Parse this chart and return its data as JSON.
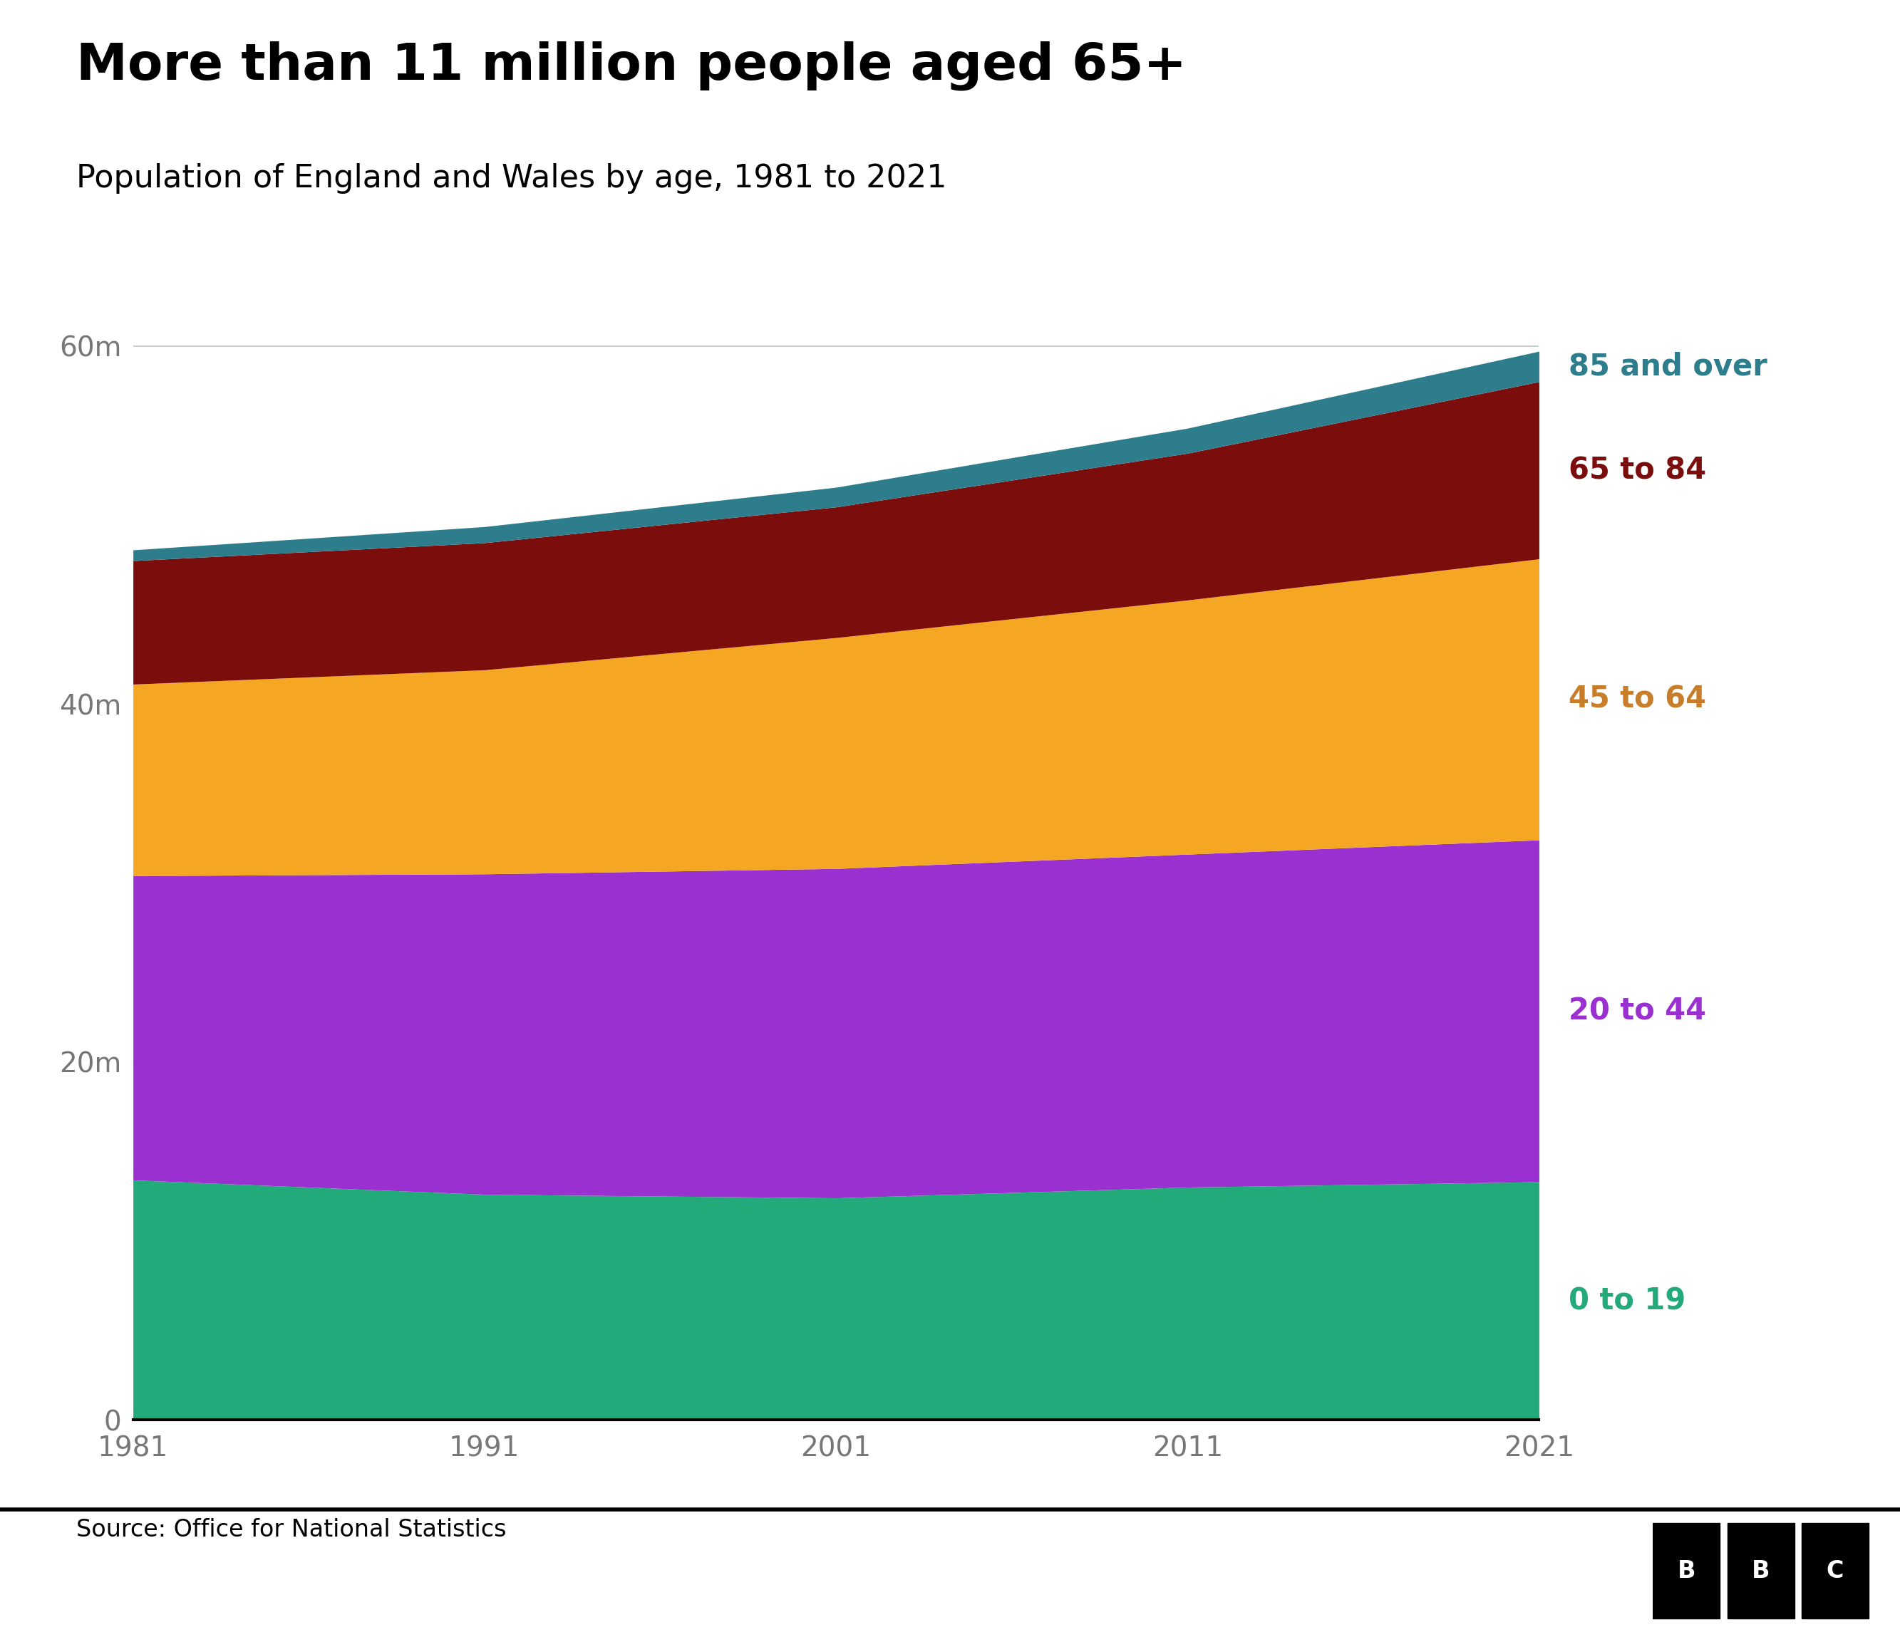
{
  "title": "More than 11 million people aged 65+",
  "subtitle": "Population of England and Wales by age, 1981 to 2021",
  "source": "Source: Office for National Statistics",
  "years": [
    1981,
    1991,
    2001,
    2011,
    2021
  ],
  "age_groups": [
    {
      "label": "0 to 19",
      "color": "#22aa7a",
      "label_color": "#22aa7a",
      "values": [
        13400000,
        12600000,
        12400000,
        13000000,
        13300000
      ]
    },
    {
      "label": "20 to 44",
      "color": "#9b30d0",
      "label_color": "#9b30d0",
      "values": [
        17000000,
        17900000,
        18400000,
        18600000,
        19100000
      ]
    },
    {
      "label": "45 to 64",
      "color": "#f5a623",
      "label_color": "#c87d2a",
      "values": [
        10700000,
        11400000,
        12900000,
        14200000,
        15700000
      ]
    },
    {
      "label": "65 to 84",
      "color": "#7b0d0d",
      "label_color": "#7b0d0d",
      "values": [
        6900000,
        7100000,
        7300000,
        8200000,
        9900000
      ]
    },
    {
      "label": "85 and over",
      "color": "#2e7d8c",
      "label_color": "#2e7d8c",
      "values": [
        600000,
        900000,
        1100000,
        1400000,
        1700000
      ]
    }
  ],
  "ylim": [
    0,
    62000000
  ],
  "yticks": [
    0,
    20000000,
    40000000,
    60000000
  ],
  "ytick_labels": [
    "0",
    "20m",
    "40m",
    "60m"
  ],
  "xticks": [
    1981,
    1991,
    2001,
    2011,
    2021
  ],
  "background_color": "#ffffff",
  "grid_color": "#cccccc",
  "title_fontsize": 52,
  "subtitle_fontsize": 32,
  "label_fontsize": 30,
  "tick_fontsize": 28,
  "source_fontsize": 24
}
